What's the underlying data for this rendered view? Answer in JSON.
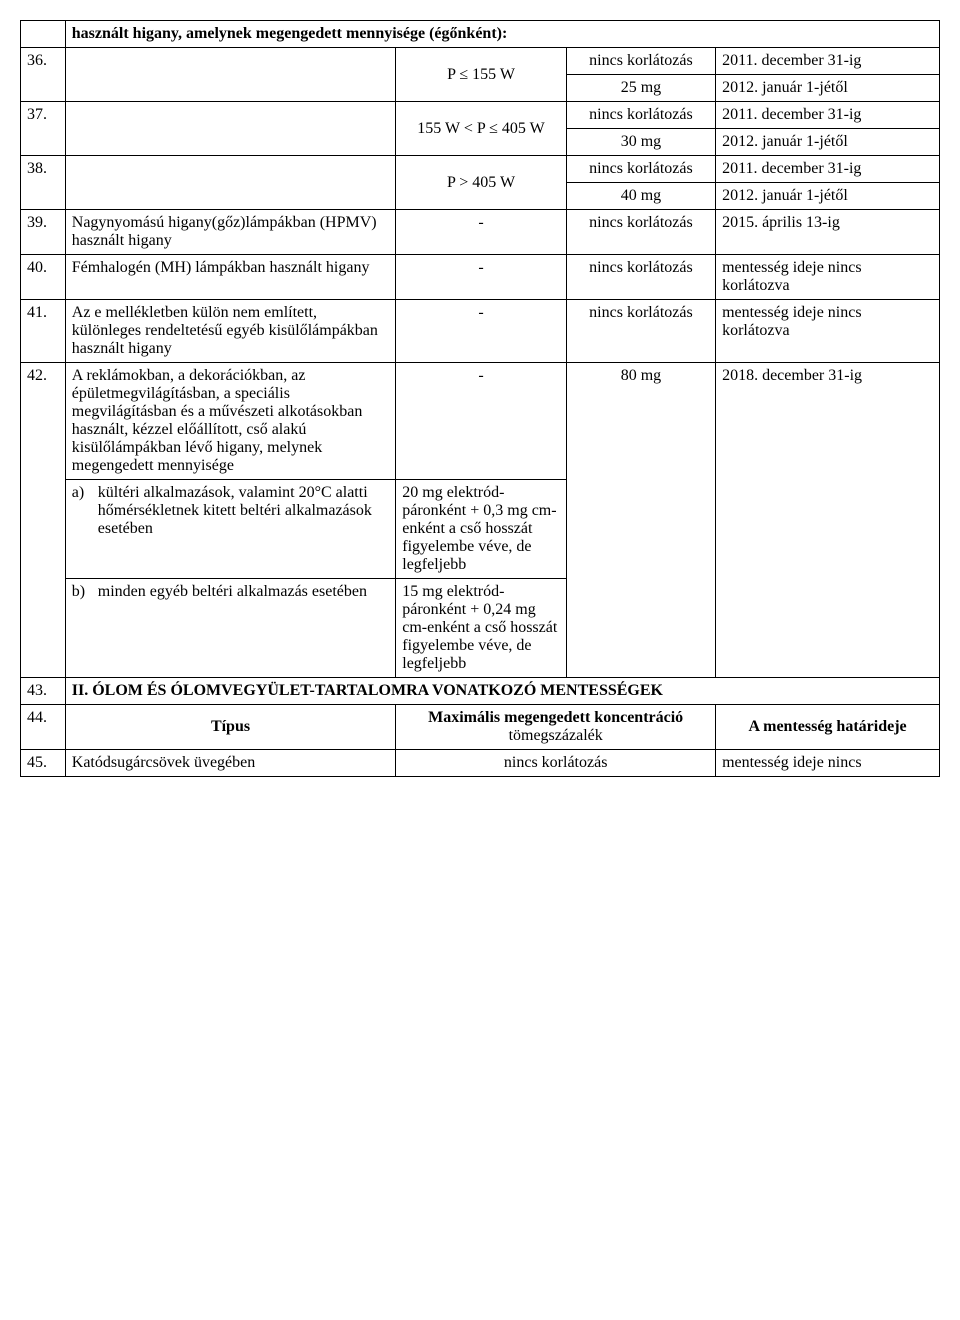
{
  "header_row": "használt higany, amelynek megengedett mennyisége (égőnként):",
  "rows": {
    "r36": {
      "num": "36.",
      "c3a": "P ≤ 155 W",
      "c4a": "nincs korlátozás",
      "c5a": "2011. december 31-ig",
      "c4b": "25 mg",
      "c5b": "2012. január 1-jétől"
    },
    "r37": {
      "num": "37.",
      "c3a": "155 W < P ≤ 405 W",
      "c4a": "nincs korlátozás",
      "c5a": "2011. december 31-ig",
      "c4b": "30 mg",
      "c5b": "2012. január 1-jétől"
    },
    "r38": {
      "num": "38.",
      "c3a": "P > 405 W",
      "c4a": "nincs korlátozás",
      "c5a": "2011. december 31-ig",
      "c4b": "40 mg",
      "c5b": "2012. január 1-jétől"
    },
    "r39": {
      "num": "39.",
      "desc": "Nagynyomású higany(gőz)lámpákban (HPMV) használt higany",
      "c3": "-",
      "c4": "nincs korlátozás",
      "c5": "2015. április 13-ig"
    },
    "r40": {
      "num": "40.",
      "desc": "Fémhalogén (MH) lámpákban használt higany",
      "c3": "-",
      "c4": "nincs korlátozás",
      "c5": "mentesség ideje nincs korlátozva"
    },
    "r41": {
      "num": "41.",
      "desc": "Az e mellékletben külön nem említett, különleges rendeltetésű egyéb kisülőlámpákban használt higany",
      "c3": "-",
      "c4": "nincs korlátozás",
      "c5": "mentesség ideje nincs korlátozva"
    },
    "r42": {
      "num": "42.",
      "desc": "A reklámokban, a dekorációkban, az épületmegvilágításban, a speciális megvilágításban és a művészeti alkotásokban használt, kézzel előállított, cső alakú kisülőlámpákban lévő higany, melynek megengedett mennyisége",
      "c3": "-",
      "c4": "80 mg",
      "c5": "2018. december 31-ig",
      "a_label": "a)",
      "a_text": "kültéri alkalmazások, valamint 20°C alatti hőmérsékletnek kitett beltéri alkalmazások esetében",
      "a_c3": "20 mg elektród-páronként + 0,3 mg cm-enként a cső hosszát figyelembe véve, de legfeljebb",
      "b_label": "b)",
      "b_text": "minden egyéb beltéri alkalmazás esetében",
      "b_c3": "15 mg elektród-páronként + 0,24 mg cm-enként a cső hosszát figyelembe véve, de legfeljebb"
    },
    "r43": {
      "num": "43.",
      "title": "II. ÓLOM ÉS ÓLOMVEGYÜLET-TARTALOMRA VONATKOZÓ MENTESSÉGEK"
    },
    "r44": {
      "num": "44.",
      "col_type": "Típus",
      "col_conc": "Maximális megengedett koncentráció",
      "col_conc_sub": "tömegszázalék",
      "col_deadline": "A mentesség határideje"
    },
    "r45": {
      "num": "45.",
      "desc": "Katódsugárcsövek üvegében",
      "c4": "nincs korlátozás",
      "c5": "mentesség ideje nincs"
    }
  }
}
